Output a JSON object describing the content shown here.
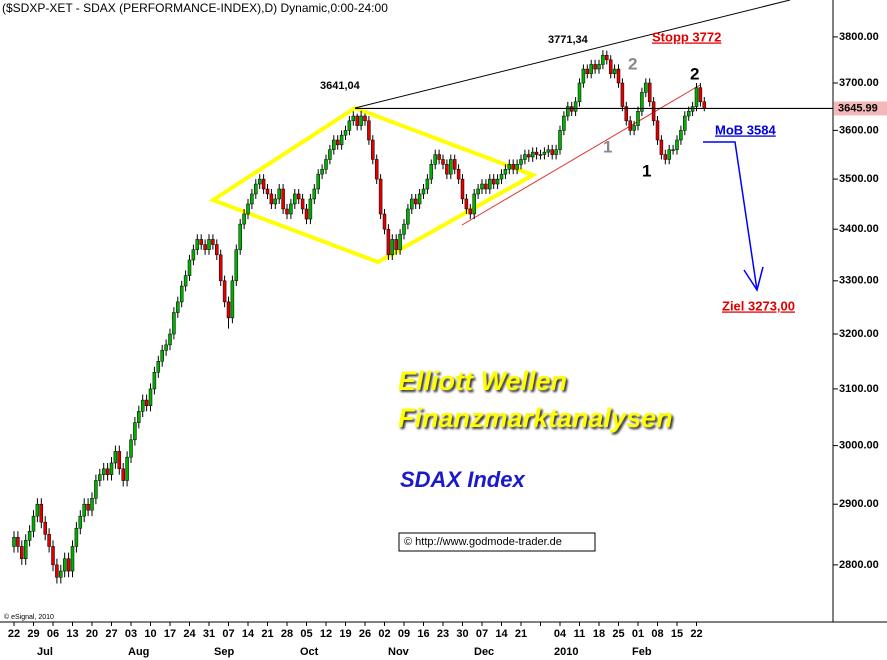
{
  "chart_data": {
    "type": "candlestick",
    "title": "($SDXP-XET - SDAX (PERFORMANCE-INDEX),D) Dynamic,0:00-24:00",
    "log": true,
    "up_color": "#00b000",
    "down_color": "#e00000",
    "ylim": [
      2709,
      3882
    ],
    "yticks": [
      {
        "value": 2800,
        "label": "2800.00"
      },
      {
        "value": 2900,
        "label": "2900.00"
      },
      {
        "value": 3000,
        "label": "3000.00"
      },
      {
        "value": 3100,
        "label": "3100.00"
      },
      {
        "value": 3200,
        "label": "3200.00"
      },
      {
        "value": 3300,
        "label": "3300.00"
      },
      {
        "value": 3400,
        "label": "3400.00"
      },
      {
        "value": 3500,
        "label": "3500.00"
      },
      {
        "value": 3600,
        "label": "3600.00"
      },
      {
        "value": 3700,
        "label": "3700.00"
      },
      {
        "value": 3800,
        "label": "3800.00"
      }
    ],
    "last": 3645.99,
    "categories": [
      "22",
      "29",
      "06",
      "13",
      "20",
      "27",
      "03",
      "10",
      "17",
      "24",
      "31",
      "07",
      "14",
      "21",
      "28",
      "05",
      "12",
      "19",
      "26",
      "02",
      "09",
      "16",
      "23",
      "30",
      "07",
      "14",
      "21",
      null,
      "04",
      "11",
      "18",
      "25",
      "01",
      "08",
      "15",
      "22"
    ],
    "months": [
      "Jul",
      "Aug",
      "Sep",
      "Oct",
      "Nov",
      "Dec",
      "2010",
      "Feb"
    ],
    "annotations": [
      "3641,04",
      "3771,34",
      "Stopp 3772",
      "2",
      "1",
      "2",
      "1",
      "MoB 3584",
      "Ziel 3273,00",
      "Elliott Wellen",
      "Finanzmarktanalysen",
      "SDAX Index",
      "© http://www.godmode-trader.de",
      "© eSignal, 2010"
    ],
    "ohlc": [
      [
        2830,
        2855,
        2820,
        2845
      ],
      [
        2845,
        2855,
        2820,
        2830
      ],
      [
        2830,
        2840,
        2800,
        2810
      ],
      [
        2810,
        2850,
        2800,
        2840
      ],
      [
        2840,
        2865,
        2830,
        2855
      ],
      [
        2855,
        2890,
        2845,
        2880
      ],
      [
        2880,
        2910,
        2870,
        2900
      ],
      [
        2900,
        2910,
        2860,
        2870
      ],
      [
        2870,
        2880,
        2840,
        2850
      ],
      [
        2850,
        2860,
        2820,
        2830
      ],
      [
        2830,
        2840,
        2790,
        2800
      ],
      [
        2800,
        2810,
        2770,
        2780
      ],
      [
        2780,
        2800,
        2770,
        2790
      ],
      [
        2790,
        2820,
        2780,
        2810
      ],
      [
        2810,
        2820,
        2780,
        2790
      ],
      [
        2790,
        2840,
        2780,
        2830
      ],
      [
        2830,
        2870,
        2820,
        2860
      ],
      [
        2860,
        2890,
        2850,
        2880
      ],
      [
        2880,
        2910,
        2870,
        2900
      ],
      [
        2900,
        2910,
        2880,
        2890
      ],
      [
        2890,
        2920,
        2880,
        2910
      ],
      [
        2910,
        2950,
        2900,
        2940
      ],
      [
        2940,
        2960,
        2930,
        2950
      ],
      [
        2950,
        2970,
        2940,
        2960
      ],
      [
        2960,
        2970,
        2940,
        2950
      ],
      [
        2950,
        2980,
        2940,
        2970
      ],
      [
        2970,
        3000,
        2960,
        2990
      ],
      [
        2990,
        3000,
        2950,
        2960
      ],
      [
        2960,
        2970,
        2930,
        2940
      ],
      [
        2940,
        2990,
        2930,
        2980
      ],
      [
        2980,
        3020,
        2970,
        3010
      ],
      [
        3010,
        3050,
        3000,
        3040
      ],
      [
        3040,
        3070,
        3030,
        3060
      ],
      [
        3060,
        3090,
        3050,
        3080
      ],
      [
        3080,
        3090,
        3060,
        3070
      ],
      [
        3070,
        3110,
        3060,
        3100
      ],
      [
        3100,
        3140,
        3090,
        3130
      ],
      [
        3130,
        3160,
        3120,
        3150
      ],
      [
        3150,
        3180,
        3140,
        3170
      ],
      [
        3170,
        3190,
        3160,
        3180
      ],
      [
        3180,
        3210,
        3170,
        3200
      ],
      [
        3200,
        3250,
        3190,
        3240
      ],
      [
        3240,
        3270,
        3230,
        3260
      ],
      [
        3260,
        3300,
        3250,
        3290
      ],
      [
        3290,
        3320,
        3280,
        3310
      ],
      [
        3310,
        3350,
        3300,
        3340
      ],
      [
        3340,
        3370,
        3330,
        3360
      ],
      [
        3360,
        3390,
        3350,
        3380
      ],
      [
        3380,
        3390,
        3360,
        3370
      ],
      [
        3370,
        3380,
        3350,
        3360
      ],
      [
        3360,
        3390,
        3350,
        3380
      ],
      [
        3380,
        3390,
        3360,
        3370
      ],
      [
        3370,
        3380,
        3340,
        3350
      ],
      [
        3350,
        3360,
        3290,
        3300
      ],
      [
        3300,
        3310,
        3250,
        3260
      ],
      [
        3260,
        3270,
        3210,
        3230
      ],
      [
        3230,
        3310,
        3220,
        3300
      ],
      [
        3300,
        3370,
        3290,
        3360
      ],
      [
        3360,
        3420,
        3350,
        3410
      ],
      [
        3410,
        3440,
        3400,
        3430
      ],
      [
        3430,
        3460,
        3420,
        3450
      ],
      [
        3450,
        3480,
        3440,
        3470
      ],
      [
        3470,
        3500,
        3460,
        3490
      ],
      [
        3490,
        3510,
        3480,
        3500
      ],
      [
        3500,
        3510,
        3470,
        3480
      ],
      [
        3480,
        3490,
        3460,
        3470
      ],
      [
        3470,
        3480,
        3440,
        3450
      ],
      [
        3450,
        3470,
        3440,
        3460
      ],
      [
        3460,
        3490,
        3450,
        3480
      ],
      [
        3480,
        3490,
        3430,
        3440
      ],
      [
        3440,
        3450,
        3420,
        3430
      ],
      [
        3430,
        3460,
        3420,
        3450
      ],
      [
        3450,
        3480,
        3440,
        3470
      ],
      [
        3470,
        3480,
        3450,
        3460
      ],
      [
        3460,
        3470,
        3430,
        3440
      ],
      [
        3440,
        3450,
        3410,
        3420
      ],
      [
        3420,
        3470,
        3410,
        3460
      ],
      [
        3460,
        3490,
        3450,
        3480
      ],
      [
        3480,
        3520,
        3470,
        3510
      ],
      [
        3510,
        3530,
        3500,
        3520
      ],
      [
        3520,
        3550,
        3510,
        3540
      ],
      [
        3540,
        3570,
        3530,
        3560
      ],
      [
        3560,
        3590,
        3550,
        3580
      ],
      [
        3580,
        3590,
        3560,
        3570
      ],
      [
        3570,
        3600,
        3560,
        3590
      ],
      [
        3590,
        3610,
        3580,
        3600
      ],
      [
        3600,
        3630,
        3590,
        3620
      ],
      [
        3620,
        3640,
        3610,
        3630
      ],
      [
        3630,
        3635,
        3600,
        3610
      ],
      [
        3610,
        3641,
        3600,
        3630
      ],
      [
        3630,
        3635,
        3610,
        3620
      ],
      [
        3620,
        3630,
        3570,
        3580
      ],
      [
        3580,
        3590,
        3530,
        3540
      ],
      [
        3540,
        3550,
        3490,
        3500
      ],
      [
        3500,
        3510,
        3420,
        3430
      ],
      [
        3430,
        3440,
        3390,
        3400
      ],
      [
        3400,
        3410,
        3340,
        3350
      ],
      [
        3350,
        3390,
        3340,
        3380
      ],
      [
        3380,
        3390,
        3350,
        3360
      ],
      [
        3360,
        3400,
        3350,
        3390
      ],
      [
        3390,
        3420,
        3380,
        3410
      ],
      [
        3410,
        3450,
        3400,
        3440
      ],
      [
        3440,
        3470,
        3430,
        3460
      ],
      [
        3460,
        3470,
        3440,
        3450
      ],
      [
        3450,
        3480,
        3440,
        3470
      ],
      [
        3470,
        3490,
        3460,
        3480
      ],
      [
        3480,
        3510,
        3470,
        3500
      ],
      [
        3500,
        3540,
        3490,
        3530
      ],
      [
        3530,
        3560,
        3520,
        3550
      ],
      [
        3550,
        3560,
        3530,
        3540
      ],
      [
        3540,
        3550,
        3520,
        3530
      ],
      [
        3530,
        3540,
        3500,
        3510
      ],
      [
        3510,
        3550,
        3500,
        3540
      ],
      [
        3540,
        3550,
        3510,
        3520
      ],
      [
        3520,
        3530,
        3490,
        3500
      ],
      [
        3500,
        3510,
        3450,
        3460
      ],
      [
        3460,
        3470,
        3430,
        3440
      ],
      [
        3440,
        3450,
        3420,
        3430
      ],
      [
        3430,
        3480,
        3420,
        3470
      ],
      [
        3470,
        3490,
        3460,
        3480
      ],
      [
        3480,
        3500,
        3470,
        3490
      ],
      [
        3490,
        3500,
        3470,
        3480
      ],
      [
        3480,
        3510,
        3470,
        3500
      ],
      [
        3500,
        3510,
        3480,
        3490
      ],
      [
        3490,
        3510,
        3480,
        3500
      ],
      [
        3500,
        3520,
        3490,
        3510
      ],
      [
        3510,
        3530,
        3500,
        3520
      ],
      [
        3520,
        3540,
        3510,
        3530
      ],
      [
        3530,
        3540,
        3510,
        3520
      ],
      [
        3520,
        3540,
        3510,
        3530
      ],
      [
        3530,
        3550,
        3520,
        3540
      ],
      [
        3540,
        3560,
        3530,
        3550
      ],
      [
        3550,
        3560,
        3535,
        3545
      ],
      [
        3545,
        3565,
        3535,
        3555
      ],
      [
        3555,
        3565,
        3540,
        3550
      ],
      [
        3550,
        3560,
        3540,
        3550
      ],
      [
        3550,
        3565,
        3540,
        3555
      ],
      [
        3555,
        3570,
        3545,
        3560
      ],
      [
        3560,
        3570,
        3540,
        3550
      ],
      [
        3550,
        3570,
        3540,
        3560
      ],
      [
        3560,
        3610,
        3550,
        3600
      ],
      [
        3600,
        3640,
        3590,
        3630
      ],
      [
        3630,
        3660,
        3620,
        3650
      ],
      [
        3650,
        3660,
        3630,
        3640
      ],
      [
        3640,
        3670,
        3630,
        3660
      ],
      [
        3660,
        3710,
        3650,
        3700
      ],
      [
        3700,
        3740,
        3690,
        3730
      ],
      [
        3730,
        3740,
        3710,
        3720
      ],
      [
        3720,
        3750,
        3710,
        3740
      ],
      [
        3740,
        3750,
        3720,
        3730
      ],
      [
        3730,
        3750,
        3720,
        3740
      ],
      [
        3740,
        3771,
        3730,
        3760
      ],
      [
        3760,
        3770,
        3740,
        3750
      ],
      [
        3750,
        3760,
        3710,
        3720
      ],
      [
        3720,
        3740,
        3710,
        3730
      ],
      [
        3730,
        3740,
        3690,
        3700
      ],
      [
        3700,
        3710,
        3640,
        3650
      ],
      [
        3650,
        3660,
        3610,
        3620
      ],
      [
        3620,
        3630,
        3590,
        3600
      ],
      [
        3600,
        3620,
        3590,
        3610
      ],
      [
        3610,
        3650,
        3600,
        3640
      ],
      [
        3640,
        3690,
        3630,
        3680
      ],
      [
        3680,
        3710,
        3670,
        3700
      ],
      [
        3700,
        3710,
        3650,
        3660
      ],
      [
        3660,
        3670,
        3610,
        3620
      ],
      [
        3620,
        3630,
        3570,
        3580
      ],
      [
        3580,
        3590,
        3540,
        3550
      ],
      [
        3550,
        3560,
        3530,
        3540
      ],
      [
        3540,
        3570,
        3530,
        3560
      ],
      [
        3560,
        3570,
        3550,
        3560
      ],
      [
        3560,
        3590,
        3550,
        3580
      ],
      [
        3580,
        3610,
        3570,
        3600
      ],
      [
        3600,
        3640,
        3590,
        3630
      ],
      [
        3630,
        3650,
        3620,
        3640
      ],
      [
        3640,
        3660,
        3630,
        3650
      ],
      [
        3650,
        3700,
        3640,
        3690
      ],
      [
        3690,
        3700,
        3650,
        3660
      ],
      [
        3660,
        3670,
        3640,
        3646
      ]
    ]
  }
}
